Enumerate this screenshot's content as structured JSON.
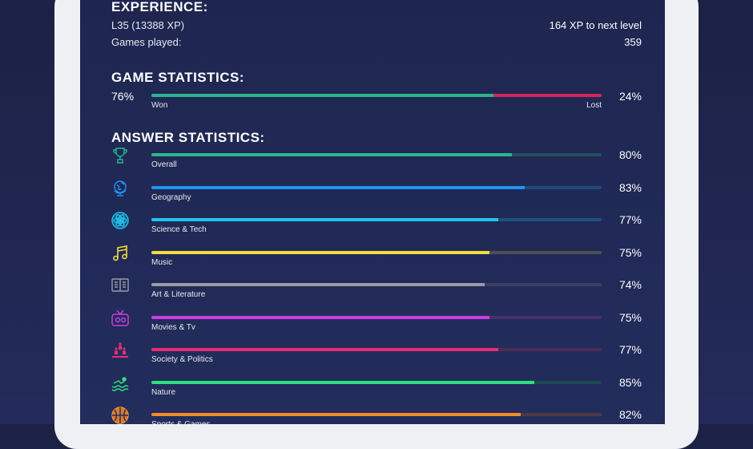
{
  "experience": {
    "title": "EXPERIENCE:",
    "level_text": "L35 (13388 XP)",
    "next_level_text": "164 XP to next level",
    "games_played_label": "Games played:",
    "games_played_value": "359"
  },
  "game_stats": {
    "title": "GAME STATISTICS:",
    "won_pct_text": "76%",
    "lost_pct_text": "24%",
    "won_label": "Won",
    "lost_label": "Lost",
    "won_fraction": 0.76,
    "won_color": "#2bb58e",
    "lost_color": "#d5245b"
  },
  "answer_stats": {
    "title": "ANSWER STATISTICS:",
    "categories": [
      {
        "label": "Overall",
        "pct_text": "80%",
        "fraction": 0.8,
        "color": "#2bb58e",
        "track": "#224f5c",
        "icon": "trophy-icon"
      },
      {
        "label": "Geography",
        "pct_text": "83%",
        "fraction": 0.83,
        "color": "#1e96f0",
        "track": "#1f4a7a",
        "icon": "globe-icon"
      },
      {
        "label": "Science & Tech",
        "pct_text": "77%",
        "fraction": 0.77,
        "color": "#20c4ef",
        "track": "#1d527a",
        "icon": "atom-icon"
      },
      {
        "label": "Music",
        "pct_text": "75%",
        "fraction": 0.75,
        "color": "#f2dc3c",
        "track": "#4c5050",
        "icon": "music-note-icon"
      },
      {
        "label": "Art & Literature",
        "pct_text": "74%",
        "fraction": 0.74,
        "color": "#9a9aa6",
        "track": "#3a4064",
        "icon": "book-icon"
      },
      {
        "label": "Movies & Tv",
        "pct_text": "75%",
        "fraction": 0.75,
        "color": "#c83fe0",
        "track": "#49306c",
        "icon": "tv-icon"
      },
      {
        "label": "Society & Politics",
        "pct_text": "77%",
        "fraction": 0.77,
        "color": "#e32f7a",
        "track": "#4e2b58",
        "icon": "people-icon"
      },
      {
        "label": "Nature",
        "pct_text": "85%",
        "fraction": 0.85,
        "color": "#2de07a",
        "track": "#1d4a52",
        "icon": "swimmer-icon"
      },
      {
        "label": "Sports & Games",
        "pct_text": "82%",
        "fraction": 0.82,
        "color": "#f28b2a",
        "track": "#4e3a44",
        "icon": "basketball-icon"
      }
    ]
  }
}
